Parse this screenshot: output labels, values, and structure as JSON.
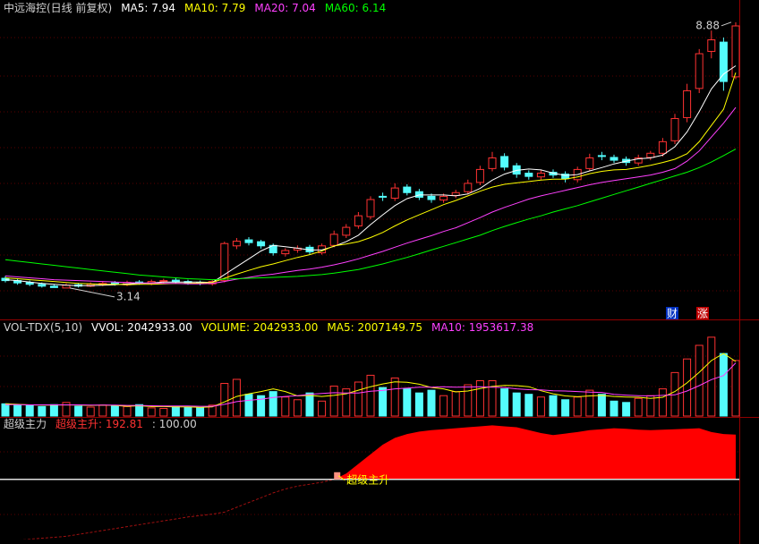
{
  "chart_data": [
    {
      "type": "candlestick",
      "title": "中远海控(日线 前复权)",
      "title_color": "#d0d0d0",
      "legend": [
        {
          "text": "MA5: 7.94",
          "color": "#ffffff"
        },
        {
          "text": "MA10: 7.79",
          "color": "#ffff00"
        },
        {
          "text": "MA20: 7.04",
          "color": "#ff40ff"
        },
        {
          "text": "MA60: 6.14",
          "color": "#00ff00"
        }
      ],
      "open": [
        3.35,
        3.3,
        3.26,
        3.22,
        3.18,
        3.14,
        3.21,
        3.18,
        3.21,
        3.25,
        3.21,
        3.27,
        3.24,
        3.28,
        3.31,
        3.28,
        3.26,
        3.23,
        3.3,
        4.05,
        4.18,
        4.14,
        4.06,
        3.88,
        3.96,
        4.02,
        3.9,
        4.06,
        4.28,
        4.48,
        4.68,
        5.12,
        5.08,
        5.32,
        5.22,
        5.12,
        5.04,
        5.14,
        5.22,
        5.42,
        5.72,
        5.98,
        5.78,
        5.62,
        5.54,
        5.64,
        5.6,
        5.48,
        5.72,
        6.0,
        5.96,
        5.92,
        5.84,
        5.96,
        6.05,
        6.32,
        6.82,
        7.45,
        8.25,
        8.45,
        7.7
      ],
      "high": [
        3.4,
        3.34,
        3.3,
        3.26,
        3.22,
        3.24,
        3.25,
        3.26,
        3.28,
        3.29,
        3.3,
        3.31,
        3.32,
        3.34,
        3.35,
        3.32,
        3.3,
        3.32,
        4.14,
        4.22,
        4.24,
        4.18,
        4.1,
        4.0,
        4.06,
        4.07,
        4.1,
        4.38,
        4.52,
        4.78,
        5.12,
        5.2,
        5.4,
        5.38,
        5.28,
        5.18,
        5.18,
        5.26,
        5.48,
        5.78,
        6.08,
        6.05,
        5.84,
        5.68,
        5.7,
        5.7,
        5.66,
        5.76,
        6.04,
        6.08,
        6.02,
        5.98,
        6.02,
        6.1,
        6.38,
        6.9,
        7.55,
        8.3,
        8.7,
        8.55,
        8.88
      ],
      "low": [
        3.26,
        3.21,
        3.18,
        3.15,
        3.16,
        3.14,
        3.15,
        3.16,
        3.18,
        3.19,
        3.18,
        3.21,
        3.2,
        3.24,
        3.23,
        3.21,
        3.2,
        3.19,
        3.26,
        3.98,
        4.06,
        3.99,
        3.84,
        3.82,
        3.9,
        3.86,
        3.86,
        4.02,
        4.22,
        4.42,
        4.62,
        5.02,
        5.02,
        5.14,
        5.04,
        4.98,
        4.98,
        5.08,
        5.16,
        5.36,
        5.66,
        5.68,
        5.52,
        5.48,
        5.48,
        5.52,
        5.42,
        5.42,
        5.66,
        5.9,
        5.84,
        5.78,
        5.78,
        5.9,
        5.98,
        6.25,
        6.72,
        7.35,
        8.1,
        7.4,
        7.65
      ],
      "close": [
        3.3,
        3.25,
        3.22,
        3.18,
        3.15,
        3.2,
        3.18,
        3.22,
        3.24,
        3.22,
        3.26,
        3.25,
        3.28,
        3.3,
        3.27,
        3.25,
        3.24,
        3.28,
        4.1,
        4.15,
        4.12,
        4.05,
        3.9,
        3.95,
        4.0,
        3.92,
        4.05,
        4.3,
        4.45,
        4.7,
        5.05,
        5.1,
        5.3,
        5.2,
        5.1,
        5.05,
        5.12,
        5.2,
        5.4,
        5.7,
        5.95,
        5.75,
        5.6,
        5.55,
        5.62,
        5.58,
        5.5,
        5.7,
        5.95,
        5.98,
        5.9,
        5.85,
        5.95,
        6.05,
        6.3,
        6.8,
        7.4,
        8.2,
        8.5,
        7.6,
        8.8
      ],
      "series": [
        {
          "color": "#ffffff",
          "values": [
            3.32,
            3.3,
            3.27,
            3.24,
            3.22,
            3.2,
            3.19,
            3.19,
            3.2,
            3.21,
            3.23,
            3.24,
            3.25,
            3.27,
            3.27,
            3.27,
            3.27,
            3.26,
            3.43,
            3.6,
            3.77,
            3.94,
            4.06,
            4.03,
            4.0,
            3.96,
            3.96,
            4.04,
            4.14,
            4.28,
            4.51,
            4.72,
            4.92,
            5.07,
            5.15,
            5.15,
            5.15,
            5.13,
            5.17,
            5.29,
            5.47,
            5.6,
            5.68,
            5.71,
            5.69,
            5.62,
            5.57,
            5.59,
            5.67,
            5.74,
            5.82,
            5.88,
            5.93,
            5.95,
            6.01,
            6.19,
            6.51,
            6.95,
            7.44,
            7.76,
            7.94
          ]
        },
        {
          "color": "#ffff00",
          "values": [
            3.36,
            3.34,
            3.32,
            3.3,
            3.28,
            3.26,
            3.24,
            3.23,
            3.22,
            3.22,
            3.21,
            3.22,
            3.22,
            3.23,
            3.24,
            3.24,
            3.25,
            3.26,
            3.35,
            3.44,
            3.52,
            3.6,
            3.66,
            3.73,
            3.8,
            3.86,
            3.94,
            4.05,
            4.09,
            4.14,
            4.23,
            4.34,
            4.48,
            4.61,
            4.72,
            4.83,
            4.94,
            5.03,
            5.13,
            5.23,
            5.32,
            5.38,
            5.41,
            5.44,
            5.47,
            5.49,
            5.49,
            5.54,
            5.61,
            5.66,
            5.69,
            5.7,
            5.74,
            5.79,
            5.85,
            5.92,
            6.04,
            6.3,
            6.65,
            7.0,
            7.79
          ]
        },
        {
          "color": "#ff40ff",
          "values": [
            3.4,
            3.38,
            3.36,
            3.34,
            3.32,
            3.31,
            3.3,
            3.29,
            3.28,
            3.27,
            3.26,
            3.25,
            3.25,
            3.24,
            3.24,
            3.23,
            3.23,
            3.24,
            3.28,
            3.33,
            3.37,
            3.41,
            3.44,
            3.48,
            3.52,
            3.55,
            3.59,
            3.64,
            3.7,
            3.77,
            3.85,
            3.93,
            4.02,
            4.11,
            4.19,
            4.27,
            4.36,
            4.44,
            4.55,
            4.66,
            4.78,
            4.88,
            4.97,
            5.06,
            5.13,
            5.19,
            5.25,
            5.31,
            5.37,
            5.42,
            5.46,
            5.5,
            5.54,
            5.58,
            5.64,
            5.72,
            5.88,
            6.1,
            6.4,
            6.7,
            7.04
          ]
        },
        {
          "color": "#00ff00",
          "values": [
            3.75,
            3.72,
            3.69,
            3.66,
            3.63,
            3.6,
            3.57,
            3.54,
            3.51,
            3.48,
            3.45,
            3.42,
            3.4,
            3.38,
            3.36,
            3.34,
            3.33,
            3.32,
            3.33,
            3.34,
            3.35,
            3.36,
            3.37,
            3.38,
            3.39,
            3.41,
            3.43,
            3.46,
            3.5,
            3.54,
            3.6,
            3.66,
            3.73,
            3.8,
            3.88,
            3.96,
            4.04,
            4.12,
            4.2,
            4.28,
            4.38,
            4.47,
            4.55,
            4.63,
            4.7,
            4.78,
            4.85,
            4.92,
            5.0,
            5.08,
            5.16,
            5.24,
            5.32,
            5.4,
            5.48,
            5.56,
            5.64,
            5.74,
            5.86,
            6.0,
            6.14
          ]
        }
      ],
      "up_color": "#ff3232",
      "down_color": "#54fcfc",
      "ylim": [
        2.5,
        9.36
      ],
      "high_label": "8.88",
      "low_label": "3.14",
      "badges": [
        "财",
        "涨"
      ]
    },
    {
      "type": "bar",
      "title": "VOL-TDX(5,10)",
      "title_color": "#d0d0d0",
      "legend": [
        {
          "text": "VVOL: 2042933.00",
          "color": "#ffffff"
        },
        {
          "text": "VOLUME: 2042933.00",
          "color": "#ffff00"
        },
        {
          "text": "MA5: 2007149.75",
          "color": "#ffff00"
        },
        {
          "text": "MA10: 1953617.38",
          "color": "#ff40ff"
        }
      ],
      "values": [
        450000,
        400000,
        380000,
        350000,
        420000,
        500000,
        360000,
        330000,
        400000,
        380000,
        350000,
        420000,
        300000,
        280000,
        360000,
        330000,
        310000,
        400000,
        1200000,
        1350000,
        800000,
        750000,
        900000,
        700000,
        600000,
        850000,
        550000,
        1100000,
        1000000,
        1250000,
        1500000,
        1050000,
        1400000,
        1000000,
        850000,
        950000,
        750000,
        900000,
        1150000,
        1300000,
        1300000,
        1000000,
        850000,
        800000,
        700000,
        750000,
        600000,
        700000,
        950000,
        800000,
        550000,
        500000,
        650000,
        750000,
        1000000,
        1600000,
        2100000,
        2600000,
        2900000,
        2300000,
        2042933
      ],
      "series": [
        {
          "color": "#ffff00",
          "values": [
            450000,
            430000,
            410000,
            400000,
            400000,
            410000,
            400000,
            390000,
            400000,
            390000,
            360000,
            380000,
            350000,
            350000,
            340000,
            340000,
            320000,
            340000,
            520000,
            720000,
            820000,
            900000,
            1000000,
            900000,
            740000,
            760000,
            720000,
            760000,
            820000,
            950000,
            1080000,
            1180000,
            1260000,
            1240000,
            1170000,
            1050000,
            1000000,
            890000,
            920000,
            1010000,
            1090000,
            1130000,
            1120000,
            1080000,
            930000,
            820000,
            740000,
            710000,
            740000,
            760000,
            720000,
            700000,
            690000,
            650000,
            690000,
            900000,
            1220000,
            1610000,
            2040000,
            2300000,
            2007149.75
          ]
        },
        {
          "color": "#ff40ff",
          "values": [
            420000,
            420000,
            410000,
            410000,
            410000,
            410000,
            410000,
            400000,
            400000,
            400000,
            390000,
            390000,
            380000,
            370000,
            370000,
            370000,
            360000,
            360000,
            430000,
            530000,
            580000,
            620000,
            680000,
            720000,
            750000,
            800000,
            830000,
            860000,
            850000,
            850000,
            910000,
            940000,
            1000000,
            1030000,
            1060000,
            1060000,
            1080000,
            1060000,
            1070000,
            1080000,
            1060000,
            1050000,
            1000000,
            970000,
            960000,
            930000,
            920000,
            900000,
            880000,
            870000,
            800000,
            770000,
            750000,
            740000,
            760000,
            780000,
            920000,
            1120000,
            1340000,
            1490000,
            1953617.38
          ]
        }
      ],
      "ylim": [
        0,
        3060000
      ]
    },
    {
      "type": "area",
      "title": "超级主力",
      "title_color": "#d0d0d0",
      "legend": [
        {
          "text": "超级主升: 192.81",
          "color": "#ff3232"
        },
        {
          "text": ": 100.00",
          "color": "#d0d0d0"
        }
      ],
      "values": [
        -28,
        -26,
        -24,
        -22,
        -20,
        -18,
        -14,
        -10,
        -6,
        -2,
        2,
        6,
        10,
        14,
        18,
        22,
        25,
        28,
        32,
        42,
        52,
        62,
        72,
        80,
        86,
        90,
        94,
        100,
        112,
        132,
        152,
        172,
        186,
        194,
        199,
        202,
        204,
        206,
        208,
        210,
        212,
        210,
        208,
        202,
        196,
        192,
        195,
        198,
        202,
        204,
        206,
        205,
        203,
        202,
        203,
        204,
        205,
        206,
        198,
        194,
        192.81
      ],
      "baseline": 100,
      "color": "#ff0000",
      "below_color": "#a01010",
      "annotation": "超级主升",
      "annotation_color": "#ffff00",
      "ylim": [
        -34,
        222
      ]
    }
  ]
}
